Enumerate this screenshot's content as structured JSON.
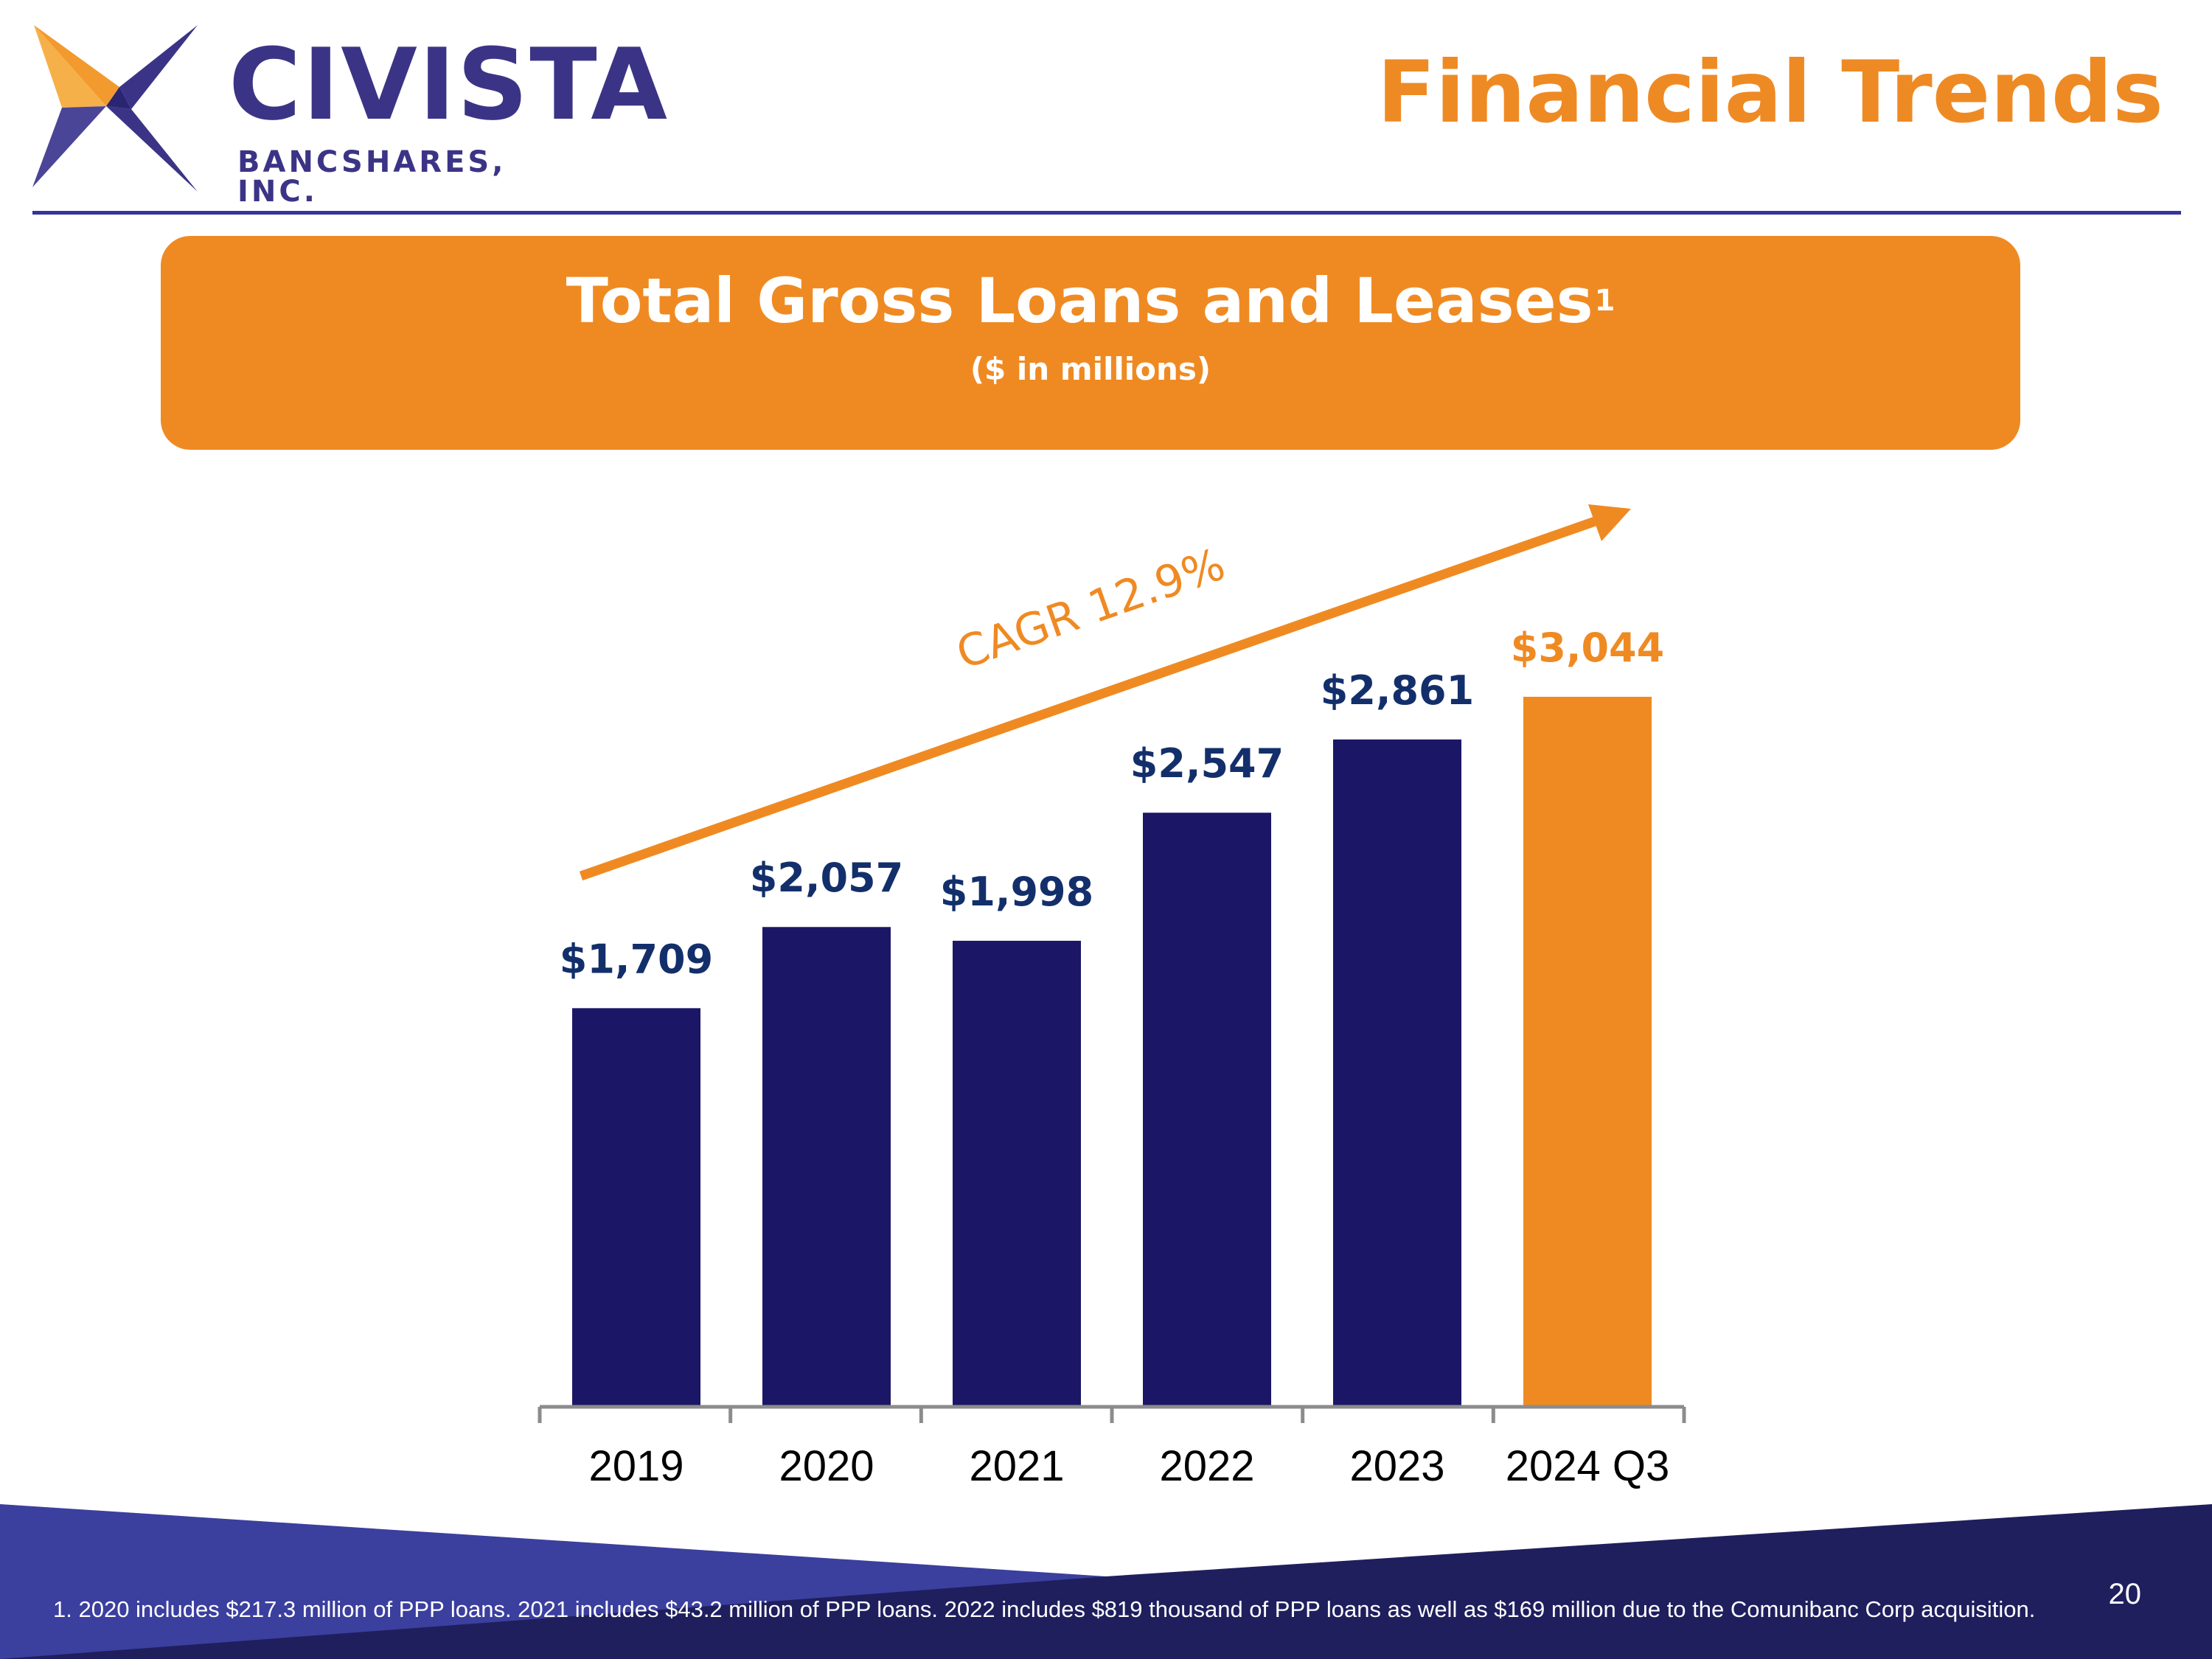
{
  "logo": {
    "name": "CIVISTA",
    "subtitle": "BANCSHARES, INC."
  },
  "page_title": "Financial Trends",
  "chart_box": {
    "title": "Total Gross Loans and Leases",
    "footnote_marker": "1",
    "subtitle": "($ in millions)"
  },
  "chart_data": {
    "type": "bar",
    "title": "Total Gross Loans and Leases",
    "subtitle": "($ in millions)",
    "xlabel": "",
    "ylabel": "",
    "categories": [
      "2019",
      "2020",
      "2021",
      "2022",
      "2023",
      "2024 Q3"
    ],
    "values": [
      1709,
      2057,
      1998,
      2547,
      2861,
      3044
    ],
    "data_labels": [
      "$1,709",
      "$2,057",
      "$1,998",
      "$2,547",
      "$2,861",
      "$3,044"
    ],
    "ylim": [
      0,
      3044
    ],
    "grid": false,
    "legend": "none",
    "highlight_index": 5,
    "annotation": {
      "text": "CAGR 12.9%",
      "type": "trend-arrow"
    }
  },
  "colors": {
    "bar": "#1b1766",
    "highlight": "#ef8a22",
    "value_label": "#132f6b",
    "accent": "#ef8a22",
    "navy": "#35339c"
  },
  "footnote": "1.  2020 includes $217.3 million of PPP loans. 2021 includes $43.2 million of PPP loans. 2022 includes $819 thousand of PPP loans as well as $169 million due to the Comunibanc Corp acquisition.",
  "page_number": "20"
}
